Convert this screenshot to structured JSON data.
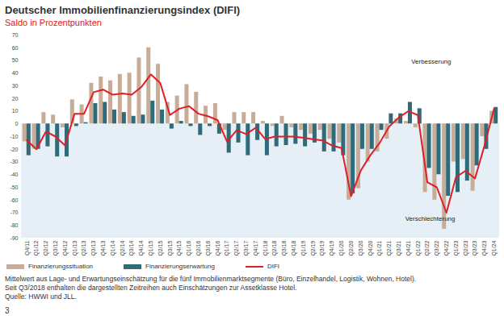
{
  "chart_data": {
    "type": "bar",
    "title": "Deutscher Immobilienfinanzierungsindex (DIFI)",
    "subtitle": "Saldo in Prozentpunkten",
    "categories": [
      "Q4/11",
      "Q1/12",
      "Q2/12",
      "Q3/12",
      "Q4/12",
      "Q1/13",
      "Q2/13",
      "Q3/13",
      "Q4/13",
      "Q1/14",
      "Q2/14",
      "Q3/14",
      "Q4/14",
      "Q1/15",
      "Q2/15",
      "Q3/15",
      "Q4/15",
      "Q1/16",
      "Q2/16",
      "Q3/16",
      "Q4/16",
      "Q1/17",
      "Q2/17",
      "Q3/17",
      "Q4/17",
      "Q1/18",
      "Q2/18",
      "Q3/18",
      "Q4/18",
      "Q1/19",
      "Q2/19",
      "Q3/19",
      "Q4/19",
      "Q1/20",
      "Q2/20",
      "Q3/20",
      "Q4/20",
      "Q1/21",
      "Q2/21",
      "Q3/21",
      "Q4/21",
      "Q1/22",
      "Q2/22",
      "Q3/22",
      "Q4/22",
      "Q1/23",
      "Q2/23",
      "Q3/23",
      "Q4/23",
      "Q1/24"
    ],
    "series": [
      {
        "name": "Finanzierungssituation",
        "type": "bar",
        "color": "#c9ac97",
        "values": [
          -14,
          -20,
          9,
          7,
          -3,
          19,
          15,
          32,
          37,
          34,
          39,
          40,
          52,
          60,
          47,
          17,
          22,
          31,
          25,
          14,
          16,
          -5,
          9,
          9,
          9,
          2,
          -2,
          6,
          -3,
          -5,
          -8,
          -5,
          -12,
          -15,
          -60,
          -51,
          -30,
          -22,
          -12,
          4,
          2,
          -3,
          -54,
          -60,
          -83,
          -30,
          -28,
          -53,
          -10,
          10
        ]
      },
      {
        "name": "Finanzierungserwartung",
        "type": "bar",
        "color": "#2f6b78",
        "values": [
          -25,
          -20,
          -18,
          -26,
          -26,
          -2,
          1,
          16,
          17,
          11,
          9,
          6,
          7,
          18,
          11,
          -4,
          2,
          -2,
          -9,
          -2,
          -8,
          -23,
          -15,
          -25,
          -13,
          -25,
          -18,
          -17,
          -16,
          -18,
          -15,
          -22,
          -22,
          -25,
          -55,
          -20,
          -20,
          -5,
          8,
          8,
          17,
          12,
          -35,
          -40,
          -57,
          -54,
          -45,
          -33,
          -20,
          13
        ]
      },
      {
        "name": "DIFI",
        "type": "line",
        "color": "#e01e26",
        "values": [
          -13,
          -20,
          -6,
          -10,
          -17,
          8,
          8,
          25,
          27,
          23,
          24,
          23,
          29,
          39,
          32,
          7,
          12,
          14,
          8,
          6,
          3,
          -14,
          -5,
          -8,
          -3,
          -12,
          -10,
          -10,
          -10,
          -11,
          -12,
          -13,
          -17,
          -19,
          -57,
          -37,
          -25,
          -15,
          -2,
          5,
          10,
          7,
          -46,
          -50,
          -70,
          -42,
          -37,
          -43,
          -17,
          12
        ]
      }
    ],
    "ylim": [
      -90,
      70
    ],
    "yticks": [
      -90,
      -80,
      -70,
      -60,
      -50,
      -40,
      -30,
      -20,
      -10,
      0,
      10,
      20,
      30,
      40,
      50,
      60,
      70
    ],
    "grid": false,
    "legend": "bottom",
    "annotations": [
      "Verbesserung",
      "Verschlechterung"
    ],
    "notes": [
      "Mittelwert aus Lage- und Erwartungseinschätzung für die fünf Immobilienmarktsegmente (Büro, Einzelhandel, Logistik, Wohnen, Hotel).",
      "Seit Q3/2018 enthalten die dargestellten Zeitreihen auch Einschätzungen zur Assetklasse Hotel."
    ],
    "source": "Quelle: HWWI und JLL.",
    "page": "3"
  }
}
